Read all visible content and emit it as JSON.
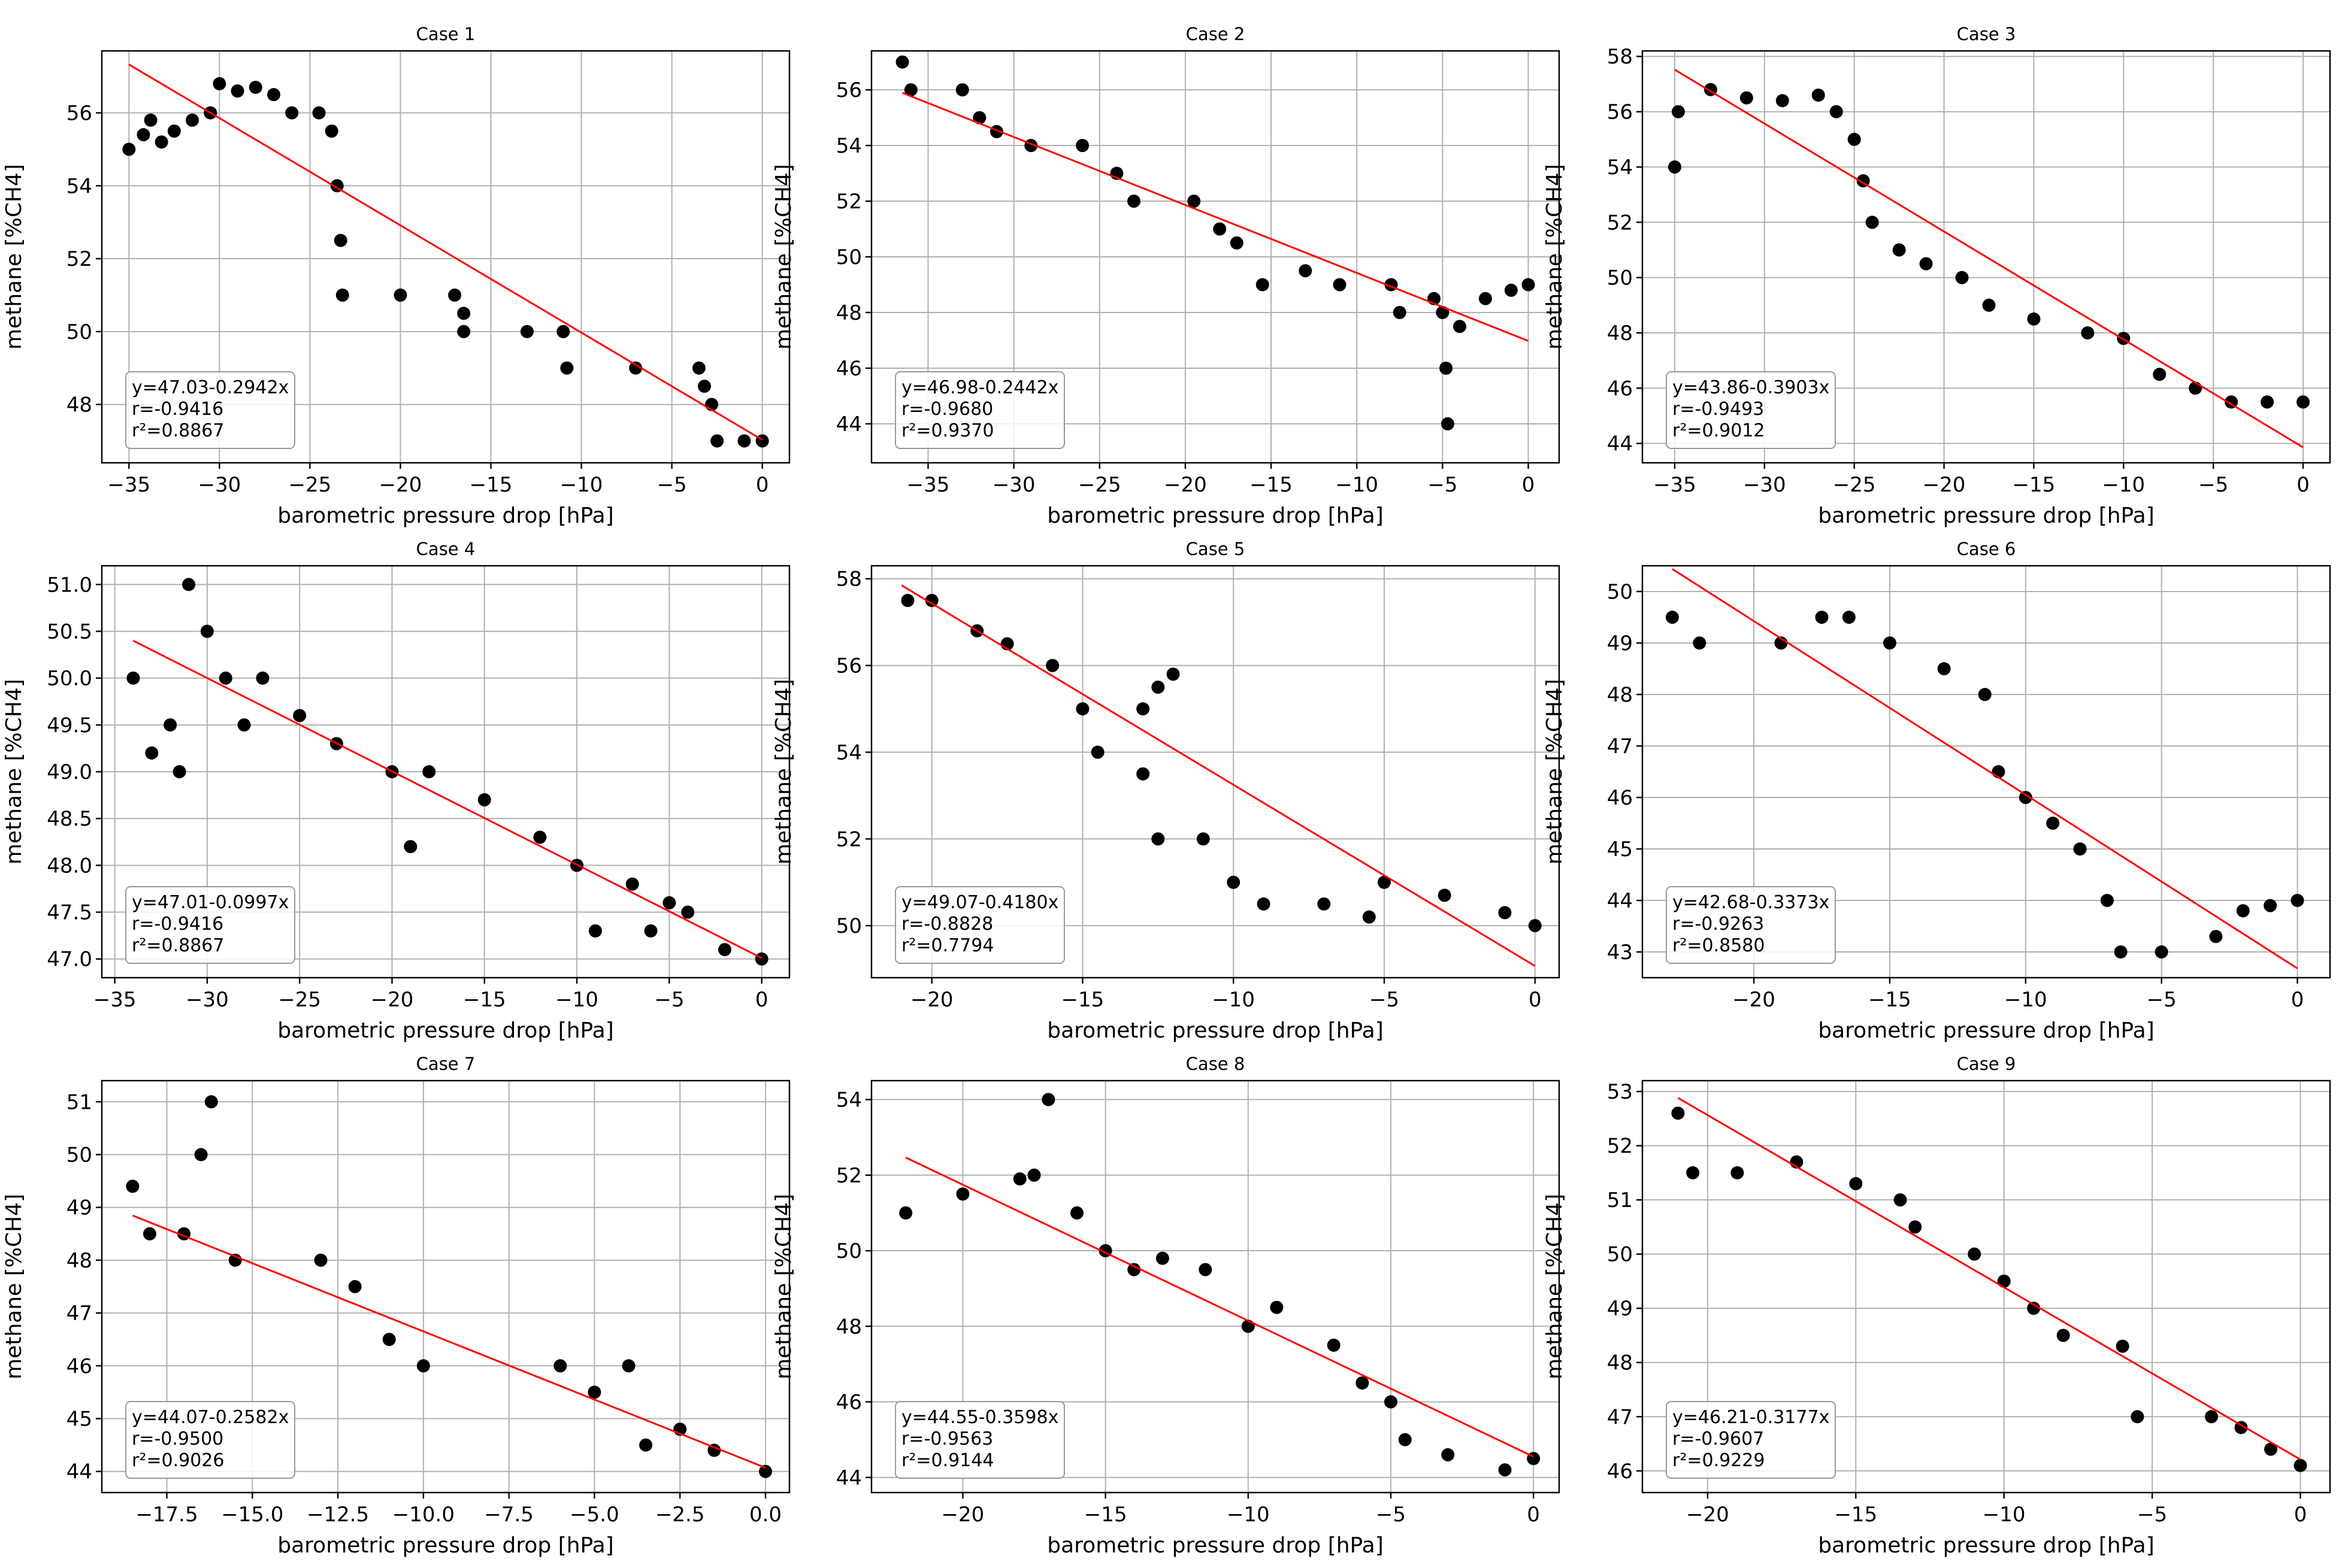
{
  "figure": {
    "xlabel": "barometric pressure drop [hPa]",
    "ylabel": "methane [%CH4]",
    "colors": {
      "points": "#000000",
      "fit": "#ff0000",
      "grid": "#b0b0b0"
    }
  },
  "chart_data": [
    {
      "type": "scatter",
      "title": "Case 1",
      "grid": true,
      "legend": "bottom-left",
      "xlabel": "barometric pressure drop [hPa]",
      "ylabel": "methane [%CH4]",
      "xlim": [
        -36.5,
        1.5
      ],
      "ylim": [
        46.4,
        57.7
      ],
      "xticks": [
        -35,
        -30,
        -25,
        -20,
        -15,
        -10,
        -5,
        0
      ],
      "yticks": [
        48,
        50,
        52,
        54,
        56
      ],
      "annotation": [
        "y=47.03-0.2942x",
        "r=-0.9416",
        "r²=0.8867"
      ],
      "fit": {
        "intercept": 47.03,
        "slope": -0.2942,
        "x_range": [
          -35,
          0
        ]
      },
      "points": [
        [
          -35,
          55.0
        ],
        [
          -34.2,
          55.4
        ],
        [
          -33.8,
          55.8
        ],
        [
          -33.2,
          55.2
        ],
        [
          -32.5,
          55.5
        ],
        [
          -31.5,
          55.8
        ],
        [
          -30.5,
          56.0
        ],
        [
          -30,
          56.8
        ],
        [
          -29,
          56.6
        ],
        [
          -28,
          56.7
        ],
        [
          -27,
          56.5
        ],
        [
          -26,
          56.0
        ],
        [
          -24.5,
          56.0
        ],
        [
          -23.8,
          55.5
        ],
        [
          -23.5,
          54.0
        ],
        [
          -23.3,
          52.5
        ],
        [
          -23.2,
          51.0
        ],
        [
          -20,
          51.0
        ],
        [
          -17,
          51.0
        ],
        [
          -16.5,
          50.5
        ],
        [
          -16.5,
          50.0
        ],
        [
          -13,
          50.0
        ],
        [
          -11,
          50.0
        ],
        [
          -10.8,
          49.0
        ],
        [
          -7,
          49.0
        ],
        [
          -3.5,
          49.0
        ],
        [
          -3.2,
          48.5
        ],
        [
          -2.8,
          48.0
        ],
        [
          -2.5,
          47.0
        ],
        [
          -1,
          47.0
        ],
        [
          0,
          47.0
        ]
      ]
    },
    {
      "type": "scatter",
      "title": "Case 2",
      "grid": true,
      "legend": "bottom-left",
      "xlabel": "barometric pressure drop [hPa]",
      "ylabel": "methane [%CH4]",
      "xlim": [
        -38.3,
        1.8
      ],
      "ylim": [
        42.6,
        57.4
      ],
      "xticks": [
        -35,
        -30,
        -25,
        -20,
        -15,
        -10,
        -5,
        0
      ],
      "yticks": [
        44,
        46,
        48,
        50,
        52,
        54,
        56
      ],
      "annotation": [
        "y=46.98-0.2442x",
        "r=-0.9680",
        "r²=0.9370"
      ],
      "fit": {
        "intercept": 46.98,
        "slope": -0.2442,
        "x_range": [
          -36.5,
          0
        ]
      },
      "points": [
        [
          -36.5,
          57.0
        ],
        [
          -36,
          56.0
        ],
        [
          -33,
          56.0
        ],
        [
          -32,
          55.0
        ],
        [
          -31,
          54.5
        ],
        [
          -29,
          54.0
        ],
        [
          -26,
          54.0
        ],
        [
          -24,
          53.0
        ],
        [
          -23,
          52.0
        ],
        [
          -19.5,
          52.0
        ],
        [
          -18,
          51.0
        ],
        [
          -17,
          50.5
        ],
        [
          -15.5,
          49.0
        ],
        [
          -13,
          49.5
        ],
        [
          -11,
          49.0
        ],
        [
          -8,
          49.0
        ],
        [
          -7.5,
          48.0
        ],
        [
          -5.5,
          48.5
        ],
        [
          -5,
          48.0
        ],
        [
          -4.8,
          46.0
        ],
        [
          -4.7,
          44.0
        ],
        [
          -4,
          47.5
        ],
        [
          -2.5,
          48.5
        ],
        [
          -1,
          48.8
        ],
        [
          0,
          49.0
        ]
      ]
    },
    {
      "type": "scatter",
      "title": "Case 3",
      "grid": true,
      "legend": "bottom-left",
      "xlabel": "barometric pressure drop [hPa]",
      "ylabel": "methane [%CH4]",
      "xlim": [
        -36.8,
        1.5
      ],
      "ylim": [
        43.3,
        58.2
      ],
      "xticks": [
        -35,
        -30,
        -25,
        -20,
        -15,
        -10,
        -5,
        0
      ],
      "yticks": [
        44,
        46,
        48,
        50,
        52,
        54,
        56,
        58
      ],
      "annotation": [
        "y=43.86-0.3903x",
        "r=-0.9493",
        "r²=0.9012"
      ],
      "fit": {
        "intercept": 43.86,
        "slope": -0.3903,
        "x_range": [
          -35,
          0
        ]
      },
      "points": [
        [
          -35,
          54.0
        ],
        [
          -34.8,
          56.0
        ],
        [
          -33,
          56.8
        ],
        [
          -31,
          56.5
        ],
        [
          -29,
          56.4
        ],
        [
          -27,
          56.6
        ],
        [
          -26,
          56.0
        ],
        [
          -25,
          55.0
        ],
        [
          -24.5,
          53.5
        ],
        [
          -24,
          52.0
        ],
        [
          -22.5,
          51.0
        ],
        [
          -21,
          50.5
        ],
        [
          -19,
          50.0
        ],
        [
          -17.5,
          49.0
        ],
        [
          -15,
          48.5
        ],
        [
          -12,
          48.0
        ],
        [
          -10,
          47.8
        ],
        [
          -8,
          46.5
        ],
        [
          -6,
          46.0
        ],
        [
          -4,
          45.5
        ],
        [
          -2,
          45.5
        ],
        [
          0,
          45.5
        ]
      ]
    },
    {
      "type": "scatter",
      "title": "Case 4",
      "grid": true,
      "legend": "bottom-left",
      "xlabel": "barometric pressure drop [hPa]",
      "ylabel": "methane [%CH4]",
      "xlim": [
        -35.7,
        1.5
      ],
      "ylim": [
        46.8,
        51.2
      ],
      "xticks": [
        -35,
        -30,
        -25,
        -20,
        -15,
        -10,
        -5,
        0
      ],
      "yticks": [
        47.0,
        47.5,
        48.0,
        48.5,
        49.0,
        49.5,
        50.0,
        50.5,
        51.0
      ],
      "annotation": [
        "y=47.01-0.0997x",
        "r=-0.9416",
        "r²=0.8867"
      ],
      "fit": {
        "intercept": 47.01,
        "slope": -0.0997,
        "x_range": [
          -34,
          0
        ]
      },
      "points": [
        [
          -34,
          50.0
        ],
        [
          -33,
          49.2
        ],
        [
          -32,
          49.5
        ],
        [
          -31.5,
          49.0
        ],
        [
          -31,
          51.0
        ],
        [
          -30,
          50.5
        ],
        [
          -29,
          50.0
        ],
        [
          -28,
          49.5
        ],
        [
          -27,
          50.0
        ],
        [
          -25,
          49.6
        ],
        [
          -23,
          49.3
        ],
        [
          -20,
          49.0
        ],
        [
          -19,
          48.2
        ],
        [
          -18,
          49.0
        ],
        [
          -15,
          48.7
        ],
        [
          -12,
          48.3
        ],
        [
          -10,
          48.0
        ],
        [
          -9,
          47.3
        ],
        [
          -7,
          47.8
        ],
        [
          -6,
          47.3
        ],
        [
          -5,
          47.6
        ],
        [
          -4,
          47.5
        ],
        [
          -2,
          47.1
        ],
        [
          0,
          47.0
        ]
      ]
    },
    {
      "type": "scatter",
      "title": "Case 5",
      "grid": true,
      "legend": "bottom-left",
      "xlabel": "barometric pressure drop [hPa]",
      "ylabel": "methane [%CH4]",
      "xlim": [
        -22.0,
        0.8
      ],
      "ylim": [
        48.8,
        58.3
      ],
      "xticks": [
        -20,
        -15,
        -10,
        -5,
        0
      ],
      "yticks": [
        50,
        52,
        54,
        56,
        58
      ],
      "annotation": [
        "y=49.07-0.4180x",
        "r=-0.8828",
        "r²=0.7794"
      ],
      "fit": {
        "intercept": 49.07,
        "slope": -0.418,
        "x_range": [
          -21,
          0
        ]
      },
      "points": [
        [
          -20.8,
          57.5
        ],
        [
          -20,
          57.5
        ],
        [
          -18.5,
          56.8
        ],
        [
          -17.5,
          56.5
        ],
        [
          -16,
          56.0
        ],
        [
          -15,
          55.0
        ],
        [
          -14.5,
          54.0
        ],
        [
          -13,
          55.0
        ],
        [
          -12.5,
          55.5
        ],
        [
          -12,
          55.8
        ],
        [
          -13,
          53.5
        ],
        [
          -12.5,
          52.0
        ],
        [
          -11,
          52.0
        ],
        [
          -10,
          51.0
        ],
        [
          -9,
          50.5
        ],
        [
          -7,
          50.5
        ],
        [
          -5.5,
          50.2
        ],
        [
          -5,
          51.0
        ],
        [
          -3,
          50.7
        ],
        [
          -1,
          50.3
        ],
        [
          0,
          50.0
        ]
      ]
    },
    {
      "type": "scatter",
      "title": "Case 6",
      "grid": true,
      "legend": "bottom-left",
      "xlabel": "barometric pressure drop [hPa]",
      "ylabel": "methane [%CH4]",
      "xlim": [
        -24.1,
        1.2
      ],
      "ylim": [
        42.5,
        50.5
      ],
      "xticks": [
        -20,
        -15,
        -10,
        -5,
        0
      ],
      "yticks": [
        43,
        44,
        45,
        46,
        47,
        48,
        49,
        50
      ],
      "annotation": [
        "y=42.68-0.3373x",
        "r=-0.9263",
        "r²=0.8580"
      ],
      "fit": {
        "intercept": 42.68,
        "slope": -0.3373,
        "x_range": [
          -23,
          0
        ]
      },
      "points": [
        [
          -23,
          49.5
        ],
        [
          -22,
          49.0
        ],
        [
          -19,
          49.0
        ],
        [
          -17.5,
          49.5
        ],
        [
          -16.5,
          49.5
        ],
        [
          -15,
          49.0
        ],
        [
          -13,
          48.5
        ],
        [
          -11.5,
          48.0
        ],
        [
          -11,
          46.5
        ],
        [
          -10,
          46.0
        ],
        [
          -9,
          45.5
        ],
        [
          -8,
          45.0
        ],
        [
          -7,
          44.0
        ],
        [
          -6.5,
          43.0
        ],
        [
          -5,
          43.0
        ],
        [
          -3,
          43.3
        ],
        [
          -2,
          43.8
        ],
        [
          -1,
          43.9
        ],
        [
          0,
          44.0
        ]
      ]
    },
    {
      "type": "scatter",
      "title": "Case 7",
      "grid": true,
      "legend": "bottom-left",
      "xlabel": "barometric pressure drop [hPa]",
      "ylabel": "methane [%CH4]",
      "xlim": [
        -19.4,
        0.7
      ],
      "ylim": [
        43.6,
        51.4
      ],
      "xticks": [
        -17.5,
        -15.0,
        -12.5,
        -10.0,
        -7.5,
        -5.0,
        -2.5,
        0.0
      ],
      "yticks": [
        44,
        45,
        46,
        47,
        48,
        49,
        50,
        51
      ],
      "annotation": [
        "y=44.07-0.2582x",
        "r=-0.9500",
        "r²=0.9026"
      ],
      "fit": {
        "intercept": 44.07,
        "slope": -0.2582,
        "x_range": [
          -18.5,
          0
        ]
      },
      "points": [
        [
          -18.5,
          49.4
        ],
        [
          -18,
          48.5
        ],
        [
          -17,
          48.5
        ],
        [
          -16.5,
          50.0
        ],
        [
          -16.2,
          51.0
        ],
        [
          -15.5,
          48.0
        ],
        [
          -13,
          48.0
        ],
        [
          -12,
          47.5
        ],
        [
          -11,
          46.5
        ],
        [
          -10,
          46.0
        ],
        [
          -6,
          46.0
        ],
        [
          -5,
          45.5
        ],
        [
          -4,
          46.0
        ],
        [
          -3.5,
          44.5
        ],
        [
          -2.5,
          44.8
        ],
        [
          -1.5,
          44.4
        ],
        [
          0,
          44.0
        ]
      ]
    },
    {
      "type": "scatter",
      "title": "Case 8",
      "grid": true,
      "legend": "bottom-left",
      "xlabel": "barometric pressure drop [hPa]",
      "ylabel": "methane [%CH4]",
      "xlim": [
        -23.2,
        0.9
      ],
      "ylim": [
        43.6,
        54.5
      ],
      "xticks": [
        -20,
        -15,
        -10,
        -5,
        0
      ],
      "yticks": [
        44,
        46,
        48,
        50,
        52,
        54
      ],
      "annotation": [
        "y=44.55-0.3598x",
        "r=-0.9563",
        "r²=0.9144"
      ],
      "fit": {
        "intercept": 44.55,
        "slope": -0.3598,
        "x_range": [
          -22,
          0
        ]
      },
      "points": [
        [
          -22,
          51.0
        ],
        [
          -20,
          51.5
        ],
        [
          -18,
          51.9
        ],
        [
          -17.5,
          52.0
        ],
        [
          -17,
          54.0
        ],
        [
          -16,
          51.0
        ],
        [
          -15,
          50.0
        ],
        [
          -14,
          49.5
        ],
        [
          -13,
          49.8
        ],
        [
          -11.5,
          49.5
        ],
        [
          -10,
          48.0
        ],
        [
          -9,
          48.5
        ],
        [
          -7,
          47.5
        ],
        [
          -6,
          46.5
        ],
        [
          -5,
          46.0
        ],
        [
          -4.5,
          45.0
        ],
        [
          -3,
          44.6
        ],
        [
          -1,
          44.2
        ],
        [
          0,
          44.5
        ]
      ]
    },
    {
      "type": "scatter",
      "title": "Case 9",
      "grid": true,
      "legend": "bottom-left",
      "xlabel": "barometric pressure drop [hPa]",
      "ylabel": "methane [%CH4]",
      "xlim": [
        -22.2,
        1.0
      ],
      "ylim": [
        45.6,
        53.2
      ],
      "xticks": [
        -20,
        -15,
        -10,
        -5,
        0
      ],
      "yticks": [
        46,
        47,
        48,
        49,
        50,
        51,
        52,
        53
      ],
      "annotation": [
        "y=46.21-0.3177x",
        "r=-0.9607",
        "r²=0.9229"
      ],
      "fit": {
        "intercept": 46.21,
        "slope": -0.3177,
        "x_range": [
          -21,
          0
        ]
      },
      "points": [
        [
          -21,
          52.6
        ],
        [
          -20.5,
          51.5
        ],
        [
          -19,
          51.5
        ],
        [
          -17,
          51.7
        ],
        [
          -15,
          51.3
        ],
        [
          -13.5,
          51.0
        ],
        [
          -13,
          50.5
        ],
        [
          -11,
          50.0
        ],
        [
          -10,
          49.5
        ],
        [
          -9,
          49.0
        ],
        [
          -8,
          48.5
        ],
        [
          -6,
          48.3
        ],
        [
          -5.5,
          47.0
        ],
        [
          -3,
          47.0
        ],
        [
          -2,
          46.8
        ],
        [
          -1,
          46.4
        ],
        [
          0,
          46.1
        ]
      ]
    }
  ]
}
